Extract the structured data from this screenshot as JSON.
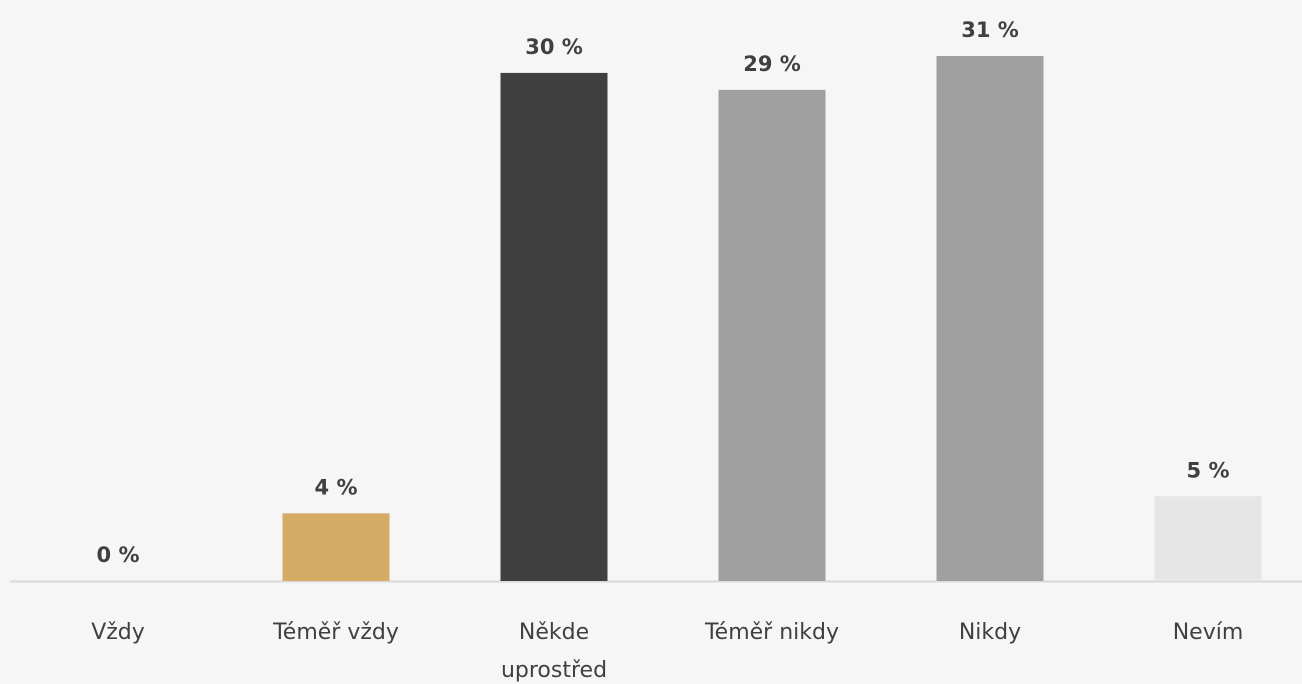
{
  "chart_data": {
    "type": "bar",
    "categories": [
      "Vždy",
      "Téměř vždy",
      "Někde uprostřed",
      "Téměř nikdy",
      "Nikdy",
      "Nevím"
    ],
    "category_lines": [
      [
        "Vždy"
      ],
      [
        "Téměř vždy"
      ],
      [
        "Někde",
        "uprostřed"
      ],
      [
        "Téměř nikdy"
      ],
      [
        "Nikdy"
      ],
      [
        "Nevím"
      ]
    ],
    "values": [
      0,
      4,
      30,
      29,
      31,
      5
    ],
    "value_labels": [
      "0 %",
      "4 %",
      "30 %",
      "29 %",
      "31 %",
      "5 %"
    ],
    "colors": [
      "#d4ac66",
      "#d4ac66",
      "#404040",
      "#a0a0a0",
      "#a0a0a0",
      "#e6e6e6"
    ],
    "axis_color": "#d9d9d9",
    "background": "#f6f6f6",
    "title": "",
    "xlabel": "",
    "ylabel": "",
    "ylim": [
      0,
      31
    ],
    "grid": false,
    "legend": "none"
  }
}
